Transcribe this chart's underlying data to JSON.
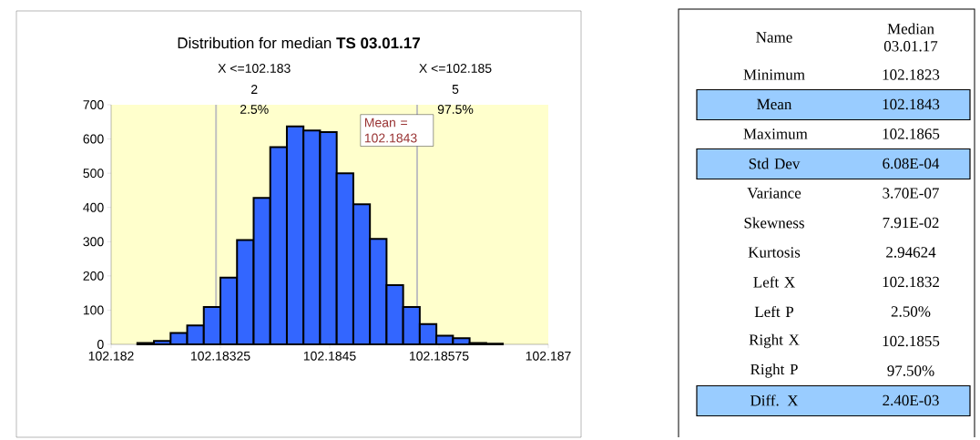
{
  "chart_data": [
    {
      "type": "histogram",
      "title": "Distribution for median **TS 03.01.17**",
      "color": "#3366ff",
      "bins": [
        102.1823,
        102.18249,
        102.18268,
        102.18287,
        102.18306,
        102.18325,
        102.18344,
        102.18363,
        102.18382,
        102.18401,
        102.1842,
        102.18439,
        102.18458,
        102.18477,
        102.18496,
        102.18515,
        102.18534,
        102.18553,
        102.18572,
        102.18591,
        102.1861,
        102.18629,
        102.18648
      ],
      "values": [
        4,
        10,
        33,
        55,
        109,
        195,
        305,
        428,
        576,
        637,
        625,
        620,
        500,
        409,
        308,
        173,
        109,
        59,
        25,
        18,
        4,
        2
      ],
      "xlim": [
        102.182,
        102.187
      ],
      "ylim": [
        0,
        700
      ],
      "xticks": [
        102.182,
        102.18325,
        102.1845,
        102.18575,
        102.187
      ],
      "yticks": [
        0,
        100,
        200,
        300,
        400,
        500,
        600,
        700
      ],
      "grid": false,
      "ref_lines": [
        {
          "axis": "x",
          "value": 102.1832,
          "label": "X <=102.183",
          "color": "#c0c0c0"
        },
        {
          "axis": "x",
          "value": 102.1855,
          "label": "X <=102.185",
          "color": "#c0c0c0"
        }
      ],
      "annotations": [
        "2",
        "2.5%",
        "5",
        "97.5%",
        "Mean = 102.1843"
      ]
    },
    {
      "type": "other",
      "annotations": [
        "Name",
        "Median 03.01.17",
        "Minimum",
        "102.1823",
        "Mean",
        "102.1843",
        "Maximum",
        "102.1865",
        "Std Dev",
        "6.08E-04",
        "Variance",
        "3.70E-07",
        "Skewness",
        "7.91E-02",
        "Kurtosis",
        "2.94624",
        "Left X",
        "102.1832",
        "Left P",
        "2.50%",
        "Right X",
        "102.1855",
        "Right P",
        "97.50%",
        "Diff. X",
        "2.40E-03"
      ]
    }
  ]
}
